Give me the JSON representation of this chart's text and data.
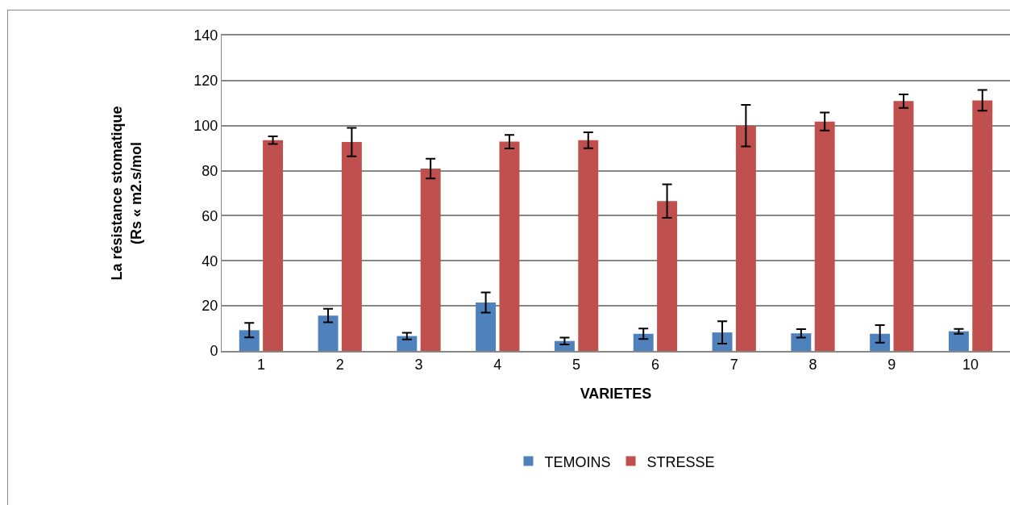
{
  "chart_data": {
    "type": "bar",
    "xlabel": "VARIETES",
    "ylabel": "La résistance stomatique\n(Rs « m2.s/mol",
    "categories": [
      "1",
      "2",
      "3",
      "4",
      "5",
      "6",
      "7",
      "8",
      "9",
      "10"
    ],
    "series": [
      {
        "name": "TEMOINS",
        "color": "#4f81bd",
        "values": [
          9.2,
          15.7,
          6.6,
          21.5,
          4.4,
          7.6,
          8.2,
          7.8,
          7.6,
          8.7
        ],
        "errors": [
          3.2,
          3,
          1.5,
          4.5,
          1.5,
          2.3,
          5,
          1.9,
          3.9,
          1.1
        ]
      },
      {
        "name": "STRESSE",
        "color": "#c0504d",
        "values": [
          93.5,
          92.7,
          80.9,
          92.9,
          93.5,
          66.5,
          100,
          101.8,
          110.9,
          111.2
        ],
        "errors": [
          1.7,
          6.3,
          4.4,
          3,
          3.5,
          7.4,
          9.2,
          4,
          3,
          4.6
        ]
      }
    ],
    "ylim": [
      0,
      140
    ],
    "yticks": [
      0,
      20,
      40,
      60,
      80,
      100,
      120,
      140
    ],
    "grid": "y",
    "legend": "bottom"
  }
}
